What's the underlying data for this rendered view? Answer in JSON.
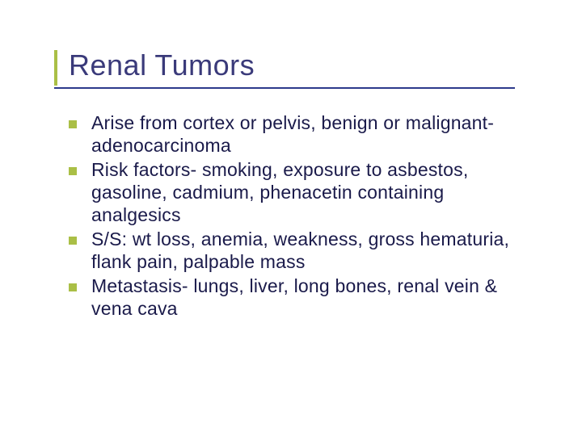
{
  "slide": {
    "title": "Renal Tumors",
    "title_color": "#3a3a7a",
    "title_fontsize": 36,
    "accent_bar_color": "#aabf46",
    "accent_bar_width": 4,
    "accent_bar_height": 44,
    "underline_color": "#2d3a8c",
    "underline_height": 2,
    "underline_width": 570,
    "bullet_color": "#aabf46",
    "bullet_size": 10,
    "body_color": "#1a1a4a",
    "body_fontsize": 23,
    "background_color": "#ffffff",
    "bullets": [
      "Arise from cortex or pelvis, benign or malignant- adenocarcinoma",
      "Risk factors- smoking, exposure to asbestos, gasoline, cadmium, phenacetin containing analgesics",
      "S/S: wt loss, anemia, weakness, gross hematuria, flank pain, palpable mass",
      "Metastasis- lungs, liver, long bones, renal vein & vena cava"
    ]
  }
}
